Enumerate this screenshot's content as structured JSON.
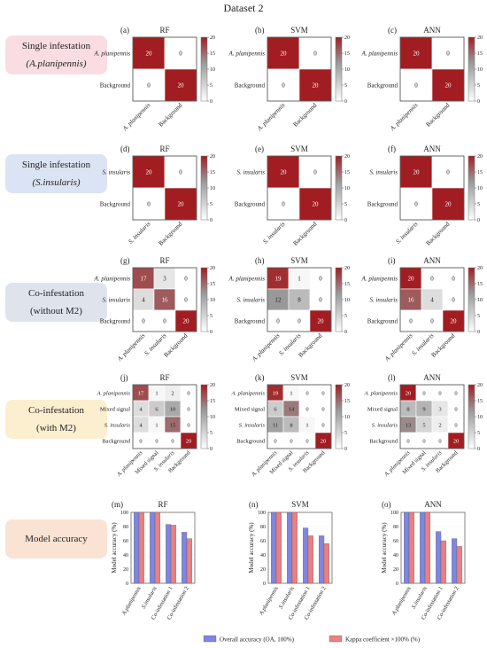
{
  "figure": {
    "title": "Dataset 2"
  },
  "rows": [
    {
      "line1": "Single infestation",
      "line2": "(A.planipennis)",
      "color": "#f9dde2"
    },
    {
      "line1": "Single infestation",
      "line2": "(S.insularis)",
      "color": "#dbe4f4"
    },
    {
      "line1": "Co-infestation",
      "line2": "(without M2)",
      "color": "#dfe4ec"
    },
    {
      "line1": "Co-infestation",
      "line2": "(with M2)",
      "color": "#fcefcf"
    },
    {
      "line1": "Model accuracy",
      "line2": "",
      "color": "#fbe3d3"
    }
  ],
  "colorbar": {
    "ticks": [
      0,
      5,
      10,
      15,
      20
    ],
    "low_color": "#ffffff",
    "mid_color": "#999999",
    "high_color": "#a11d21"
  },
  "chart_data": [
    {
      "type": "heatmap",
      "panel": "(a)",
      "title": "RF",
      "y_labels": [
        "A. planipennis",
        "Background"
      ],
      "x_labels": [
        "A. planipennis",
        "Background"
      ],
      "matrix": [
        [
          20,
          0
        ],
        [
          0,
          20
        ]
      ],
      "show_y_labels": true,
      "zlim": [
        0,
        20
      ]
    },
    {
      "type": "heatmap",
      "panel": "(b)",
      "title": "SVM",
      "y_labels": [
        "A. planipennis",
        "Background"
      ],
      "x_labels": [
        "A. planipennis",
        "Background"
      ],
      "matrix": [
        [
          20,
          0
        ],
        [
          0,
          20
        ]
      ],
      "show_y_labels": true,
      "zlim": [
        0,
        20
      ]
    },
    {
      "type": "heatmap",
      "panel": "(c)",
      "title": "ANN",
      "y_labels": [
        "A. planipennis",
        "Background"
      ],
      "x_labels": [
        "A. planipennis",
        "Background"
      ],
      "matrix": [
        [
          20,
          0
        ],
        [
          0,
          20
        ]
      ],
      "show_y_labels": true,
      "zlim": [
        0,
        20
      ]
    },
    {
      "type": "heatmap",
      "panel": "(d)",
      "title": "RF",
      "y_labels": [
        "S. insularis",
        "Background"
      ],
      "x_labels": [
        "S. insularis",
        "Background"
      ],
      "matrix": [
        [
          20,
          0
        ],
        [
          0,
          20
        ]
      ],
      "show_y_labels": true,
      "zlim": [
        0,
        20
      ]
    },
    {
      "type": "heatmap",
      "panel": "(e)",
      "title": "SVM",
      "y_labels": [
        "S. insularis",
        "Background"
      ],
      "x_labels": [
        "S. insularis",
        "Background"
      ],
      "matrix": [
        [
          20,
          0
        ],
        [
          0,
          20
        ]
      ],
      "show_y_labels": true,
      "zlim": [
        0,
        20
      ]
    },
    {
      "type": "heatmap",
      "panel": "(f)",
      "title": "ANN",
      "y_labels": [
        "S. insularis",
        "Background"
      ],
      "x_labels": [
        "S. insularis",
        "Background"
      ],
      "matrix": [
        [
          20,
          0
        ],
        [
          0,
          20
        ]
      ],
      "show_y_labels": true,
      "zlim": [
        0,
        20
      ]
    },
    {
      "type": "heatmap",
      "panel": "(g)",
      "title": "RF",
      "y_labels": [
        "A. planipennis",
        "S. insularis",
        "Background"
      ],
      "x_labels": [
        "A. planipennis",
        "S. insularis",
        "Background"
      ],
      "matrix": [
        [
          17,
          3,
          0
        ],
        [
          4,
          16,
          0
        ],
        [
          0,
          0,
          20
        ]
      ],
      "show_y_labels": true,
      "zlim": [
        0,
        20
      ]
    },
    {
      "type": "heatmap",
      "panel": "(h)",
      "title": "SVM",
      "y_labels": [
        "A. planipennis",
        "S. insularis",
        "Background"
      ],
      "x_labels": [
        "A. planipennis",
        "S. insularis",
        "Background"
      ],
      "matrix": [
        [
          19,
          1,
          0
        ],
        [
          12,
          8,
          0
        ],
        [
          0,
          0,
          20
        ]
      ],
      "show_y_labels": true,
      "zlim": [
        0,
        20
      ]
    },
    {
      "type": "heatmap",
      "panel": "(i)",
      "title": "ANN",
      "y_labels": [
        "A. planipennis",
        "S. insularis",
        "Background"
      ],
      "x_labels": [
        "A. planipennis",
        "S. insularis",
        "Background"
      ],
      "matrix": [
        [
          20,
          0,
          0
        ],
        [
          16,
          4,
          0
        ],
        [
          0,
          0,
          20
        ]
      ],
      "show_y_labels": true,
      "zlim": [
        0,
        20
      ]
    },
    {
      "type": "heatmap",
      "panel": "(j)",
      "title": "RF",
      "y_labels": [
        "A. planipennis",
        "Mixed signal",
        "S. insularis",
        "Background"
      ],
      "x_labels": [
        "A. planipennis",
        "Mixed signal",
        "S. insularis",
        "Background"
      ],
      "matrix": [
        [
          17,
          1,
          2,
          0
        ],
        [
          4,
          6,
          10,
          0
        ],
        [
          4,
          1,
          15,
          0
        ],
        [
          0,
          0,
          0,
          20
        ]
      ],
      "show_y_labels": true,
      "zlim": [
        0,
        20
      ]
    },
    {
      "type": "heatmap",
      "panel": "(k)",
      "title": "SVM",
      "y_labels": [
        "A. planipennis",
        "Mixed signal",
        "S. insularis",
        "Background"
      ],
      "x_labels": [
        "A. planipennis",
        "Mixed signal",
        "S. insularis",
        "Background"
      ],
      "matrix": [
        [
          19,
          1,
          0,
          0
        ],
        [
          6,
          14,
          0,
          0
        ],
        [
          11,
          8,
          1,
          0
        ],
        [
          0,
          0,
          0,
          20
        ]
      ],
      "show_y_labels": true,
      "zlim": [
        0,
        20
      ]
    },
    {
      "type": "heatmap",
      "panel": "(l)",
      "title": "ANN",
      "y_labels": [
        "A. planipennis",
        "Mixed signal",
        "S. insularis",
        "Background"
      ],
      "x_labels": [
        "A. planipennis",
        "Mixed signal",
        "S. insularis",
        "Background"
      ],
      "matrix": [
        [
          20,
          0,
          0,
          0
        ],
        [
          8,
          9,
          3,
          0
        ],
        [
          13,
          5,
          2,
          0
        ],
        [
          0,
          0,
          0,
          20
        ]
      ],
      "show_y_labels": true,
      "zlim": [
        0,
        20
      ]
    },
    {
      "type": "bar",
      "panel": "(m)",
      "title": "RF",
      "categories": [
        "A.planipennis",
        "S.insularis",
        "Co-infestation 1",
        "Co-infestation 2"
      ],
      "ylabel": "Model accuracy (%)",
      "ylim": [
        0,
        100
      ],
      "yticks": [
        0,
        20,
        40,
        60,
        80,
        100
      ],
      "series": [
        {
          "name": "Overall accuracy (OA, 100%)",
          "color": "#7f86e0",
          "values": [
            100,
            100,
            83,
            72
          ]
        },
        {
          "name": "Kappa coefficient ×100% (%)",
          "color": "#ec7f7f",
          "values": [
            100,
            100,
            82,
            63
          ]
        }
      ]
    },
    {
      "type": "bar",
      "panel": "(n)",
      "title": "SVM",
      "categories": [
        "A.planipennis",
        "S.insularis",
        "Co-infestation 1",
        "Co-infestation 2"
      ],
      "ylabel": "Model accuracy (%)",
      "ylim": [
        0,
        100
      ],
      "yticks": [
        0,
        20,
        40,
        60,
        80,
        100
      ],
      "series": [
        {
          "name": "Overall accuracy (OA, 100%)",
          "color": "#7f86e0",
          "values": [
            100,
            100,
            78,
            67
          ]
        },
        {
          "name": "Kappa coefficient ×100% (%)",
          "color": "#ec7f7f",
          "values": [
            100,
            100,
            67,
            56
          ]
        }
      ]
    },
    {
      "type": "bar",
      "panel": "(o)",
      "title": "ANN",
      "categories": [
        "A.planipennis",
        "S.insularis",
        "Co-infestation 1",
        "Co-infestation 2"
      ],
      "ylabel": "Model accuracy (%)",
      "ylim": [
        0,
        100
      ],
      "yticks": [
        0,
        20,
        40,
        60,
        80,
        100
      ],
      "series": [
        {
          "name": "Overall accuracy (OA, 100%)",
          "color": "#7f86e0",
          "values": [
            100,
            100,
            73,
            63
          ]
        },
        {
          "name": "Kappa coefficient ×100% (%)",
          "color": "#ec7f7f",
          "values": [
            100,
            100,
            60,
            52
          ]
        }
      ]
    }
  ],
  "legend": [
    {
      "label": "Overall accuracy (OA, 100%)",
      "color": "#7f86e0"
    },
    {
      "label": "Kappa coefficient ×100% (%)",
      "color": "#ec7f7f"
    }
  ]
}
